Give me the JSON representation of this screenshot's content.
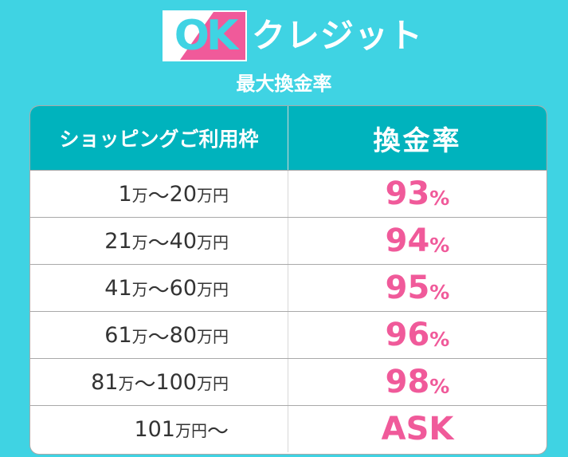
{
  "header": {
    "logo_ok": "OK",
    "brand": "クレジット",
    "subtitle": "最大換金率"
  },
  "colors": {
    "background": "#3fd3e3",
    "header_row": "#00b3bd",
    "accent_pink": "#f05a9a"
  },
  "table": {
    "col_range": "ショッピングご利用枠",
    "col_rate": "換金率",
    "rows": [
      {
        "from": "1",
        "u1": "万",
        "sep": "〜",
        "to": "20",
        "u2": "万円",
        "rate": "93",
        "pct": "%"
      },
      {
        "from": "21",
        "u1": "万",
        "sep": "〜",
        "to": "40",
        "u2": "万円",
        "rate": "94",
        "pct": "%"
      },
      {
        "from": "41",
        "u1": "万",
        "sep": "〜",
        "to": "60",
        "u2": "万円",
        "rate": "95",
        "pct": "%"
      },
      {
        "from": "61",
        "u1": "万",
        "sep": "〜",
        "to": "80",
        "u2": "万円",
        "rate": "96",
        "pct": "%"
      },
      {
        "from": "81",
        "u1": "万",
        "sep": "〜",
        "to": "100",
        "u2": "万円",
        "rate": "98",
        "pct": "%"
      },
      {
        "from": "101",
        "u1": "万円",
        "sep": "〜",
        "to": "",
        "u2": "",
        "rate": "ASK",
        "pct": ""
      }
    ]
  }
}
